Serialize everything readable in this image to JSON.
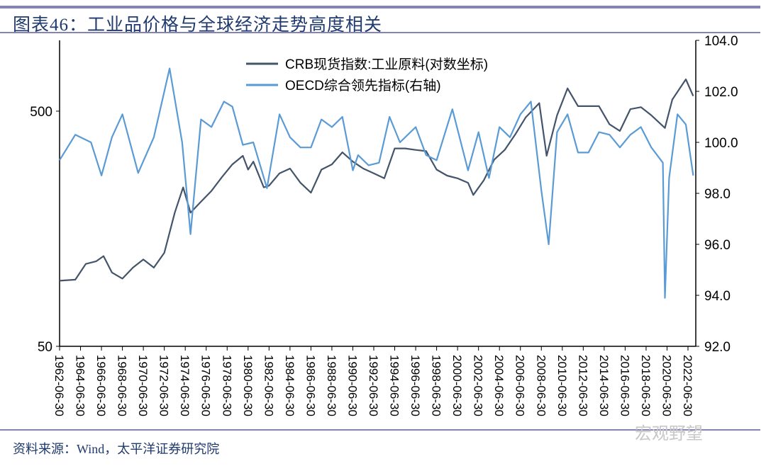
{
  "title": "图表46：工业品价格与全球经济走势高度相关",
  "source": "资料来源：Wind，太平洋证券研究院",
  "watermark": "宏观野望",
  "chart_data": {
    "type": "line",
    "title": "",
    "legend_position": "top-center",
    "grid": false,
    "left_axis": {
      "scale": "log",
      "range": [
        50,
        1000
      ],
      "ticks": [
        "50",
        "500"
      ]
    },
    "right_axis": {
      "scale": "linear",
      "range": [
        92,
        104
      ],
      "ticks": [
        "92.0",
        "94.0",
        "96.0",
        "98.0",
        "100.0",
        "102.0",
        "104.0"
      ]
    },
    "x_ticks": [
      "1962-06-30",
      "1964-06-30",
      "1966-06-30",
      "1968-06-30",
      "1970-06-30",
      "1972-06-30",
      "1974-06-30",
      "1976-06-30",
      "1978-06-30",
      "1980-06-30",
      "1982-06-30",
      "1984-06-30",
      "1986-06-30",
      "1988-06-30",
      "1990-06-30",
      "1992-06-30",
      "1994-06-30",
      "1996-06-30",
      "1998-06-30",
      "2000-06-30",
      "2002-06-30",
      "2004-06-30",
      "2006-06-30",
      "2008-06-30",
      "2010-06-30",
      "2012-06-30",
      "2014-06-30",
      "2016-06-30",
      "2018-06-30",
      "2020-06-30",
      "2022-06-30"
    ],
    "series": [
      {
        "name": "CRB现货指数:工业原料(对数坐标)",
        "axis": "left",
        "color": "#44546a",
        "x": [
          1962.5,
          1964,
          1965,
          1966,
          1966.7,
          1967.5,
          1968.5,
          1969.5,
          1970.5,
          1971.5,
          1972.5,
          1973.5,
          1974.3,
          1975,
          1976,
          1977,
          1978,
          1979,
          1980,
          1980.5,
          1981,
          1982,
          1982.5,
          1983.5,
          1984.5,
          1985.5,
          1986.5,
          1987.5,
          1988.5,
          1989.5,
          1990.5,
          1991.5,
          1992.5,
          1993.5,
          1994.5,
          1995.5,
          1996.5,
          1997.5,
          1998.5,
          1999.5,
          2000.5,
          2001.5,
          2002,
          2003,
          2004,
          2005,
          2006,
          2007,
          2008.3,
          2009,
          2010,
          2011,
          2012,
          2013,
          2014,
          2015,
          2016,
          2017,
          2018,
          2019,
          2020.3,
          2021,
          2022.3,
          2023
        ],
        "values": [
          95,
          96,
          112,
          115,
          121,
          103,
          97,
          108,
          117,
          108,
          125,
          185,
          237,
          185,
          206,
          229,
          262,
          297,
          323,
          282,
          305,
          237,
          241,
          272,
          285,
          248,
          225,
          282,
          297,
          334,
          305,
          285,
          272,
          259,
          347,
          347,
          342,
          338,
          282,
          266,
          259,
          248,
          220,
          254,
          311,
          342,
          398,
          470,
          541,
          323,
          480,
          625,
          525,
          525,
          525,
          440,
          412,
          510,
          520,
          480,
          424,
          560,
          683,
          580
        ]
      },
      {
        "name": "OECD综合领先指标(右轴)",
        "axis": "right",
        "color": "#5b9bd5",
        "x": [
          1962.5,
          1964,
          1965.5,
          1966.5,
          1967.5,
          1968.5,
          1970,
          1971.5,
          1973,
          1974.2,
          1975,
          1976,
          1977,
          1978.2,
          1979,
          1980,
          1981,
          1982.3,
          1983.5,
          1984.5,
          1985.5,
          1986.5,
          1987.5,
          1988.5,
          1989.5,
          1990.5,
          1991,
          1992,
          1993,
          1994,
          1995,
          1996.5,
          1997.5,
          1998.5,
          2000,
          2001.5,
          2002.5,
          2003.5,
          2004.5,
          2005.5,
          2006.5,
          2007.5,
          2008.5,
          2009.2,
          2010,
          2011,
          2012,
          2013,
          2014,
          2015,
          2016,
          2017,
          2018,
          2019,
          2020.1,
          2020.3,
          2020.7,
          2021.5,
          2022.3,
          2023
        ],
        "values": [
          99.3,
          100.3,
          100.0,
          98.7,
          100.2,
          101.1,
          98.8,
          100.2,
          102.9,
          100.0,
          96.4,
          100.9,
          100.6,
          101.6,
          101.4,
          99.9,
          100.0,
          98.2,
          101.1,
          100.2,
          99.8,
          99.8,
          100.9,
          100.6,
          101.0,
          98.9,
          99.5,
          99.1,
          99.2,
          101.0,
          100.0,
          100.6,
          99.5,
          99.3,
          101.3,
          98.9,
          100.4,
          98.6,
          100.6,
          100.2,
          101.1,
          101.6,
          98.1,
          96.0,
          100.4,
          101.1,
          99.6,
          99.6,
          100.4,
          100.3,
          99.8,
          100.3,
          100.6,
          99.8,
          99.2,
          93.9,
          98.6,
          101.1,
          100.7,
          98.7
        ]
      }
    ]
  }
}
